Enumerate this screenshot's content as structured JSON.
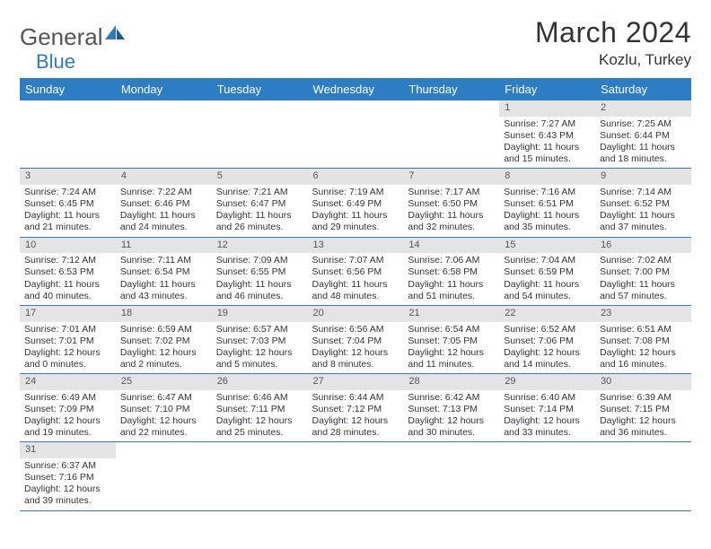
{
  "brand": {
    "part1": "General",
    "part2": "Blue"
  },
  "title": "March 2024",
  "location": "Kozlu, Turkey",
  "colors": {
    "accent": "#2d7dc5",
    "header_bg": "#2d7dc5",
    "daynum_bg": "#e4e4e4",
    "text": "#333333"
  },
  "day_headers": [
    "Sunday",
    "Monday",
    "Tuesday",
    "Wednesday",
    "Thursday",
    "Friday",
    "Saturday"
  ],
  "weeks": [
    [
      {
        "n": "",
        "lines": []
      },
      {
        "n": "",
        "lines": []
      },
      {
        "n": "",
        "lines": []
      },
      {
        "n": "",
        "lines": []
      },
      {
        "n": "",
        "lines": []
      },
      {
        "n": "1",
        "lines": [
          "Sunrise: 7:27 AM",
          "Sunset: 6:43 PM",
          "Daylight: 11 hours",
          "and 15 minutes."
        ]
      },
      {
        "n": "2",
        "lines": [
          "Sunrise: 7:25 AM",
          "Sunset: 6:44 PM",
          "Daylight: 11 hours",
          "and 18 minutes."
        ]
      }
    ],
    [
      {
        "n": "3",
        "lines": [
          "Sunrise: 7:24 AM",
          "Sunset: 6:45 PM",
          "Daylight: 11 hours",
          "and 21 minutes."
        ]
      },
      {
        "n": "4",
        "lines": [
          "Sunrise: 7:22 AM",
          "Sunset: 6:46 PM",
          "Daylight: 11 hours",
          "and 24 minutes."
        ]
      },
      {
        "n": "5",
        "lines": [
          "Sunrise: 7:21 AM",
          "Sunset: 6:47 PM",
          "Daylight: 11 hours",
          "and 26 minutes."
        ]
      },
      {
        "n": "6",
        "lines": [
          "Sunrise: 7:19 AM",
          "Sunset: 6:49 PM",
          "Daylight: 11 hours",
          "and 29 minutes."
        ]
      },
      {
        "n": "7",
        "lines": [
          "Sunrise: 7:17 AM",
          "Sunset: 6:50 PM",
          "Daylight: 11 hours",
          "and 32 minutes."
        ]
      },
      {
        "n": "8",
        "lines": [
          "Sunrise: 7:16 AM",
          "Sunset: 6:51 PM",
          "Daylight: 11 hours",
          "and 35 minutes."
        ]
      },
      {
        "n": "9",
        "lines": [
          "Sunrise: 7:14 AM",
          "Sunset: 6:52 PM",
          "Daylight: 11 hours",
          "and 37 minutes."
        ]
      }
    ],
    [
      {
        "n": "10",
        "lines": [
          "Sunrise: 7:12 AM",
          "Sunset: 6:53 PM",
          "Daylight: 11 hours",
          "and 40 minutes."
        ]
      },
      {
        "n": "11",
        "lines": [
          "Sunrise: 7:11 AM",
          "Sunset: 6:54 PM",
          "Daylight: 11 hours",
          "and 43 minutes."
        ]
      },
      {
        "n": "12",
        "lines": [
          "Sunrise: 7:09 AM",
          "Sunset: 6:55 PM",
          "Daylight: 11 hours",
          "and 46 minutes."
        ]
      },
      {
        "n": "13",
        "lines": [
          "Sunrise: 7:07 AM",
          "Sunset: 6:56 PM",
          "Daylight: 11 hours",
          "and 48 minutes."
        ]
      },
      {
        "n": "14",
        "lines": [
          "Sunrise: 7:06 AM",
          "Sunset: 6:58 PM",
          "Daylight: 11 hours",
          "and 51 minutes."
        ]
      },
      {
        "n": "15",
        "lines": [
          "Sunrise: 7:04 AM",
          "Sunset: 6:59 PM",
          "Daylight: 11 hours",
          "and 54 minutes."
        ]
      },
      {
        "n": "16",
        "lines": [
          "Sunrise: 7:02 AM",
          "Sunset: 7:00 PM",
          "Daylight: 11 hours",
          "and 57 minutes."
        ]
      }
    ],
    [
      {
        "n": "17",
        "lines": [
          "Sunrise: 7:01 AM",
          "Sunset: 7:01 PM",
          "Daylight: 12 hours",
          "and 0 minutes."
        ]
      },
      {
        "n": "18",
        "lines": [
          "Sunrise: 6:59 AM",
          "Sunset: 7:02 PM",
          "Daylight: 12 hours",
          "and 2 minutes."
        ]
      },
      {
        "n": "19",
        "lines": [
          "Sunrise: 6:57 AM",
          "Sunset: 7:03 PM",
          "Daylight: 12 hours",
          "and 5 minutes."
        ]
      },
      {
        "n": "20",
        "lines": [
          "Sunrise: 6:56 AM",
          "Sunset: 7:04 PM",
          "Daylight: 12 hours",
          "and 8 minutes."
        ]
      },
      {
        "n": "21",
        "lines": [
          "Sunrise: 6:54 AM",
          "Sunset: 7:05 PM",
          "Daylight: 12 hours",
          "and 11 minutes."
        ]
      },
      {
        "n": "22",
        "lines": [
          "Sunrise: 6:52 AM",
          "Sunset: 7:06 PM",
          "Daylight: 12 hours",
          "and 14 minutes."
        ]
      },
      {
        "n": "23",
        "lines": [
          "Sunrise: 6:51 AM",
          "Sunset: 7:08 PM",
          "Daylight: 12 hours",
          "and 16 minutes."
        ]
      }
    ],
    [
      {
        "n": "24",
        "lines": [
          "Sunrise: 6:49 AM",
          "Sunset: 7:09 PM",
          "Daylight: 12 hours",
          "and 19 minutes."
        ]
      },
      {
        "n": "25",
        "lines": [
          "Sunrise: 6:47 AM",
          "Sunset: 7:10 PM",
          "Daylight: 12 hours",
          "and 22 minutes."
        ]
      },
      {
        "n": "26",
        "lines": [
          "Sunrise: 6:46 AM",
          "Sunset: 7:11 PM",
          "Daylight: 12 hours",
          "and 25 minutes."
        ]
      },
      {
        "n": "27",
        "lines": [
          "Sunrise: 6:44 AM",
          "Sunset: 7:12 PM",
          "Daylight: 12 hours",
          "and 28 minutes."
        ]
      },
      {
        "n": "28",
        "lines": [
          "Sunrise: 6:42 AM",
          "Sunset: 7:13 PM",
          "Daylight: 12 hours",
          "and 30 minutes."
        ]
      },
      {
        "n": "29",
        "lines": [
          "Sunrise: 6:40 AM",
          "Sunset: 7:14 PM",
          "Daylight: 12 hours",
          "and 33 minutes."
        ]
      },
      {
        "n": "30",
        "lines": [
          "Sunrise: 6:39 AM",
          "Sunset: 7:15 PM",
          "Daylight: 12 hours",
          "and 36 minutes."
        ]
      }
    ],
    [
      {
        "n": "31",
        "lines": [
          "Sunrise: 6:37 AM",
          "Sunset: 7:16 PM",
          "Daylight: 12 hours",
          "and 39 minutes."
        ]
      },
      {
        "n": "",
        "lines": []
      },
      {
        "n": "",
        "lines": []
      },
      {
        "n": "",
        "lines": []
      },
      {
        "n": "",
        "lines": []
      },
      {
        "n": "",
        "lines": []
      },
      {
        "n": "",
        "lines": []
      }
    ]
  ]
}
